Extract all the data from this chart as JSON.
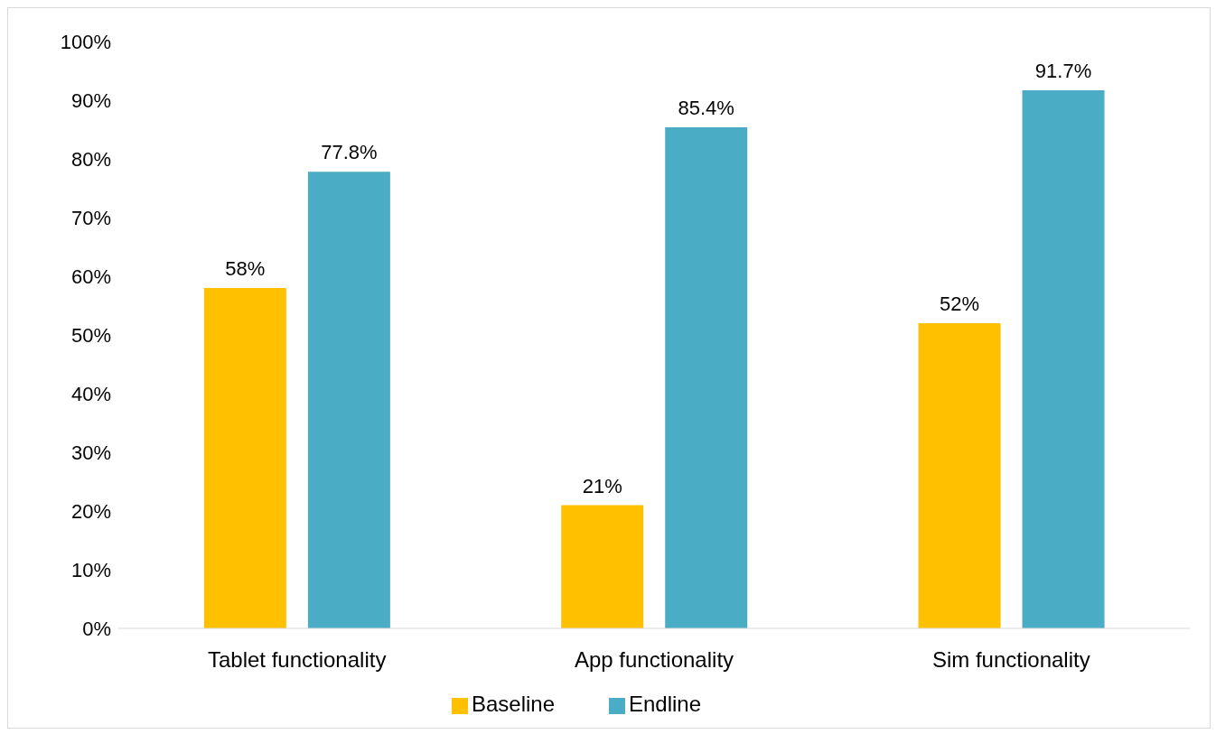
{
  "chart_data": {
    "type": "bar",
    "categories": [
      "Tablet functionality",
      "App functionality",
      "Sim functionality"
    ],
    "series": [
      {
        "name": "Baseline",
        "color": "#ffc000",
        "values": [
          58,
          21,
          52
        ],
        "value_labels": [
          "58%",
          "21%",
          "52%"
        ]
      },
      {
        "name": "Endline",
        "color": "#4bacc6",
        "values": [
          77.8,
          85.4,
          91.7
        ],
        "value_labels": [
          "77.8%",
          "85.4%",
          "91.7%"
        ]
      }
    ],
    "ylim": [
      0,
      100
    ],
    "yticks": [
      {
        "value": 0,
        "label": "0%"
      },
      {
        "value": 10,
        "label": "10%"
      },
      {
        "value": 20,
        "label": "20%"
      },
      {
        "value": 30,
        "label": "30%"
      },
      {
        "value": 40,
        "label": "40%"
      },
      {
        "value": 50,
        "label": "50%"
      },
      {
        "value": 60,
        "label": "60%"
      },
      {
        "value": 70,
        "label": "70%"
      },
      {
        "value": 80,
        "label": "80%"
      },
      {
        "value": 90,
        "label": "90%"
      },
      {
        "value": 100,
        "label": "100%"
      }
    ],
    "grid": false,
    "legend": "bottom"
  }
}
